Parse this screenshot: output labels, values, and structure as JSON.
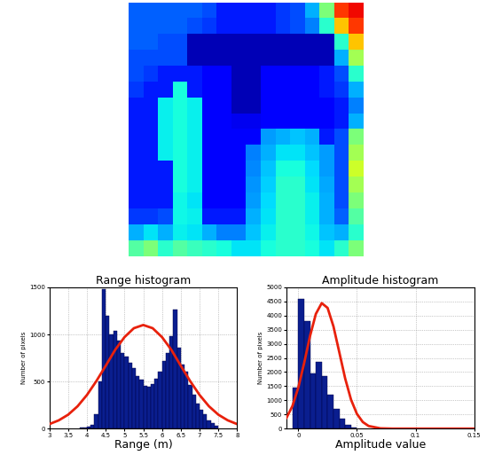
{
  "chart_data": [
    {
      "type": "heatmap",
      "tick_labels": false,
      "color_range": [
        0,
        1
      ],
      "cells": [
        [
          0.22,
          0.22,
          0.22,
          0.22,
          0.22,
          0.2,
          0.15,
          0.15,
          0.15,
          0.15,
          0.18,
          0.2,
          0.3,
          0.5,
          0.85,
          0.9
        ],
        [
          0.22,
          0.22,
          0.22,
          0.22,
          0.2,
          0.18,
          0.15,
          0.15,
          0.15,
          0.15,
          0.18,
          0.2,
          0.25,
          0.4,
          0.7,
          0.85
        ],
        [
          0.22,
          0.22,
          0.2,
          0.2,
          0.05,
          0.05,
          0.05,
          0.05,
          0.05,
          0.05,
          0.05,
          0.05,
          0.05,
          0.05,
          0.4,
          0.7
        ],
        [
          0.2,
          0.2,
          0.2,
          0.2,
          0.05,
          0.05,
          0.05,
          0.05,
          0.05,
          0.05,
          0.05,
          0.05,
          0.05,
          0.05,
          0.3,
          0.55
        ],
        [
          0.2,
          0.18,
          0.15,
          0.15,
          0.15,
          0.12,
          0.12,
          0.05,
          0.05,
          0.12,
          0.12,
          0.12,
          0.12,
          0.15,
          0.2,
          0.4
        ],
        [
          0.18,
          0.15,
          0.15,
          0.38,
          0.15,
          0.12,
          0.12,
          0.05,
          0.05,
          0.12,
          0.12,
          0.12,
          0.12,
          0.15,
          0.18,
          0.3
        ],
        [
          0.15,
          0.15,
          0.36,
          0.38,
          0.36,
          0.12,
          0.12,
          0.05,
          0.05,
          0.12,
          0.12,
          0.12,
          0.12,
          0.12,
          0.15,
          0.25
        ],
        [
          0.15,
          0.15,
          0.36,
          0.38,
          0.36,
          0.12,
          0.12,
          0.1,
          0.1,
          0.12,
          0.12,
          0.12,
          0.12,
          0.12,
          0.15,
          0.3
        ],
        [
          0.15,
          0.15,
          0.36,
          0.38,
          0.36,
          0.12,
          0.12,
          0.12,
          0.12,
          0.28,
          0.3,
          0.32,
          0.3,
          0.15,
          0.2,
          0.5
        ],
        [
          0.15,
          0.15,
          0.36,
          0.38,
          0.36,
          0.12,
          0.12,
          0.12,
          0.25,
          0.3,
          0.35,
          0.35,
          0.32,
          0.28,
          0.2,
          0.55
        ],
        [
          0.15,
          0.15,
          0.15,
          0.38,
          0.36,
          0.12,
          0.12,
          0.12,
          0.26,
          0.32,
          0.38,
          0.38,
          0.34,
          0.28,
          0.2,
          0.6
        ],
        [
          0.15,
          0.15,
          0.15,
          0.38,
          0.36,
          0.12,
          0.12,
          0.12,
          0.27,
          0.33,
          0.4,
          0.4,
          0.35,
          0.29,
          0.2,
          0.55
        ],
        [
          0.15,
          0.15,
          0.15,
          0.37,
          0.35,
          0.12,
          0.12,
          0.12,
          0.28,
          0.34,
          0.4,
          0.4,
          0.36,
          0.3,
          0.2,
          0.5
        ],
        [
          0.18,
          0.18,
          0.2,
          0.37,
          0.36,
          0.15,
          0.15,
          0.15,
          0.3,
          0.35,
          0.4,
          0.4,
          0.36,
          0.3,
          0.22,
          0.45
        ],
        [
          0.3,
          0.35,
          0.3,
          0.36,
          0.35,
          0.3,
          0.25,
          0.25,
          0.32,
          0.36,
          0.4,
          0.4,
          0.37,
          0.32,
          0.3,
          0.4
        ],
        [
          0.45,
          0.5,
          0.4,
          0.45,
          0.42,
          0.4,
          0.38,
          0.35,
          0.35,
          0.38,
          0.4,
          0.4,
          0.38,
          0.35,
          0.4,
          0.5
        ]
      ]
    },
    {
      "type": "histogram",
      "title": "Range histogram",
      "x_label": "Range (m)",
      "y_label": "Number of pixels",
      "color": "#0a1e8f",
      "grid": true,
      "bins": [
        3.8,
        3.9,
        4.0,
        4.1,
        4.2,
        4.3,
        4.4,
        4.5,
        4.6,
        4.7,
        4.8,
        4.9,
        5.0,
        5.1,
        5.2,
        5.3,
        5.4,
        5.5,
        5.6,
        5.7,
        5.8,
        5.9,
        6.0,
        6.1,
        6.2,
        6.3,
        6.4,
        6.5,
        6.6,
        6.7,
        6.8,
        6.9,
        7.0,
        7.1,
        7.2,
        7.3,
        7.4,
        7.5
      ],
      "counts": [
        10,
        15,
        20,
        40,
        150,
        500,
        1480,
        1200,
        1000,
        1040,
        930,
        800,
        760,
        700,
        640,
        560,
        520,
        450,
        440,
        470,
        530,
        600,
        720,
        800,
        980,
        1260,
        860,
        680,
        600,
        460,
        360,
        270,
        200,
        150,
        90,
        60,
        30
      ],
      "fit": {
        "type": "line",
        "color": "#e8210c",
        "x": [
          3,
          3.25,
          3.5,
          3.75,
          4,
          4.25,
          4.5,
          4.75,
          5,
          5.25,
          5.5,
          5.75,
          6,
          6.25,
          6.5,
          6.75,
          7,
          7.25,
          7.5,
          7.75,
          8
        ],
        "values": [
          48,
          88,
          148,
          237,
          357,
          504,
          667,
          835,
          971,
          1066,
          1100,
          1066,
          971,
          835,
          667,
          504,
          357,
          237,
          148,
          88,
          48
        ]
      },
      "xlim": [
        3,
        8
      ],
      "xticks": [
        3,
        3.5,
        4,
        4.5,
        5,
        5.5,
        6,
        6.5,
        7,
        7.5,
        8
      ],
      "ylim": [
        0,
        1500
      ],
      "yticks": [
        0,
        500,
        1000,
        1500
      ]
    },
    {
      "type": "histogram",
      "title": "Amplitude histogram",
      "x_label": "Amplitude value",
      "y_label": "Number of pixels",
      "color": "#0a1e8f",
      "grid": true,
      "bins": [
        -0.005,
        0,
        0.005,
        0.01,
        0.015,
        0.02,
        0.025,
        0.03,
        0.035,
        0.04,
        0.045,
        0.05
      ],
      "counts": [
        1450,
        4600,
        3800,
        1950,
        2350,
        1850,
        1200,
        700,
        350,
        120,
        40
      ],
      "fit": {
        "type": "line",
        "color": "#e8210c",
        "x": [
          -0.01,
          -0.005,
          0,
          0.005,
          0.01,
          0.015,
          0.02,
          0.025,
          0.03,
          0.035,
          0.04,
          0.045,
          0.05,
          0.055,
          0.06,
          0.07,
          0.08,
          0.1,
          0.15
        ],
        "values": [
          384,
          795,
          1445,
          2316,
          3268,
          4059,
          4440,
          4272,
          3618,
          2699,
          1772,
          1023,
          521,
          233,
          92,
          10,
          0,
          0,
          0
        ]
      },
      "xlim": [
        -0.01,
        0.15
      ],
      "xticks": [
        0,
        0.05,
        0.1,
        0.15
      ],
      "ylim": [
        0,
        5000
      ],
      "yticks": [
        0,
        500,
        1000,
        1500,
        2000,
        2500,
        3000,
        3500,
        4000,
        4500,
        5000
      ]
    }
  ]
}
